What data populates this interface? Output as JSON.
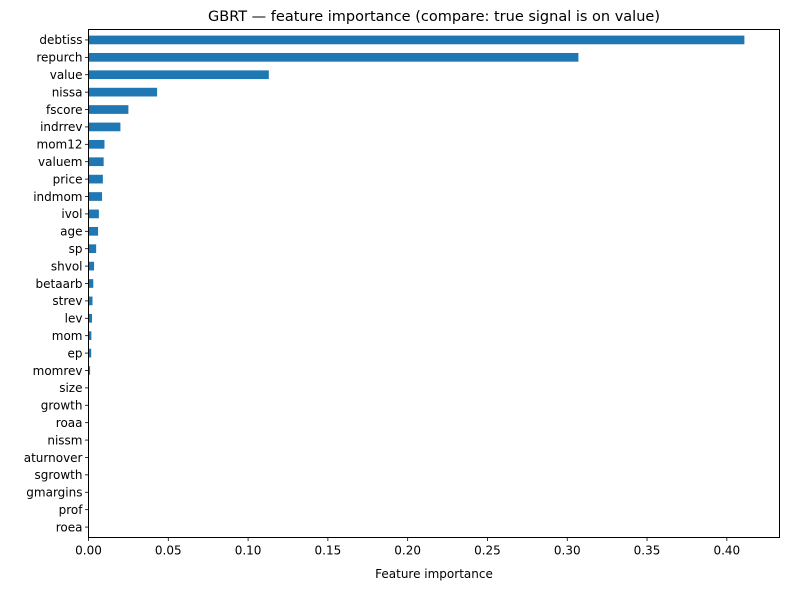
{
  "chart_data": {
    "type": "bar",
    "orientation": "horizontal",
    "title": "GBRT — feature importance (compare: true signal is on value)",
    "xlabel": "Feature importance",
    "ylabel": "",
    "xlim": [
      0.0,
      0.433
    ],
    "xticks": [
      "0.00",
      "0.05",
      "0.10",
      "0.15",
      "0.20",
      "0.25",
      "0.30",
      "0.35",
      "0.40"
    ],
    "grid": false,
    "legend": "none",
    "bar_color": "#1f77b4",
    "categories": [
      "debtiss",
      "repurch",
      "value",
      "nissa",
      "fscore",
      "indrrev",
      "mom12",
      "valuem",
      "price",
      "indmom",
      "ivol",
      "age",
      "sp",
      "shvol",
      "betaarb",
      "strev",
      "lev",
      "mom",
      "ep",
      "momrev",
      "size",
      "growth",
      "roaa",
      "nissm",
      "aturnover",
      "sgrowth",
      "gmargins",
      "prof",
      "roea"
    ],
    "values": [
      0.411,
      0.307,
      0.113,
      0.043,
      0.025,
      0.02,
      0.01,
      0.0095,
      0.009,
      0.0085,
      0.0065,
      0.006,
      0.0048,
      0.0035,
      0.003,
      0.0025,
      0.0022,
      0.0018,
      0.0017,
      0.001,
      0.0003,
      0.0002,
      0.0002,
      0.0001,
      0.0001,
      0.0001,
      0.0001,
      0.0001,
      0.0001
    ]
  }
}
